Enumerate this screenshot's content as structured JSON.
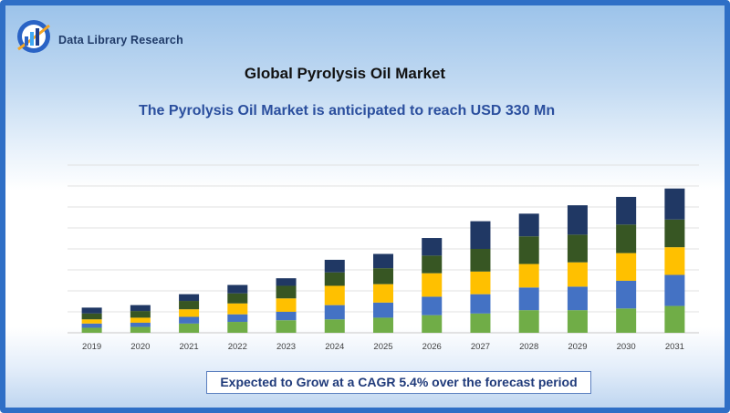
{
  "brand": {
    "name": "Data Library Research"
  },
  "header": {
    "title": "Global Pyrolysis Oil Market",
    "subtitle": "The  Pyrolysis Oil Market is anticipated to reach USD 330 Mn"
  },
  "footer": {
    "cagr_text": "Expected to Grow at a CAGR 5.4% over the forecast period"
  },
  "chart_data": {
    "type": "bar",
    "stacked": true,
    "categories": [
      "2019",
      "2020",
      "2021",
      "2022",
      "2023",
      "2024",
      "2025",
      "2026",
      "2027",
      "2028",
      "2029",
      "2030",
      "2031"
    ],
    "series": [
      {
        "color": "#70ad47",
        "values": [
          6,
          7,
          11,
          13,
          15,
          16,
          18,
          21,
          23,
          27,
          27,
          29,
          32
        ]
      },
      {
        "color": "#4472c4",
        "values": [
          5,
          5,
          8,
          9,
          10,
          17,
          18,
          22,
          23,
          27,
          28,
          33,
          37
        ]
      },
      {
        "color": "#ffc000",
        "values": [
          5,
          6,
          9,
          13,
          16,
          23,
          22,
          28,
          27,
          28,
          29,
          33,
          33
        ]
      },
      {
        "color": "#375623",
        "values": [
          7,
          8,
          10,
          12,
          15,
          16,
          19,
          21,
          27,
          33,
          33,
          34,
          33
        ]
      },
      {
        "color": "#203864",
        "values": [
          7,
          7,
          8,
          10,
          9,
          15,
          17,
          21,
          33,
          27,
          35,
          33,
          37
        ]
      }
    ],
    "ylim": [
      0,
      200
    ],
    "grid": true,
    "legend": "none"
  }
}
